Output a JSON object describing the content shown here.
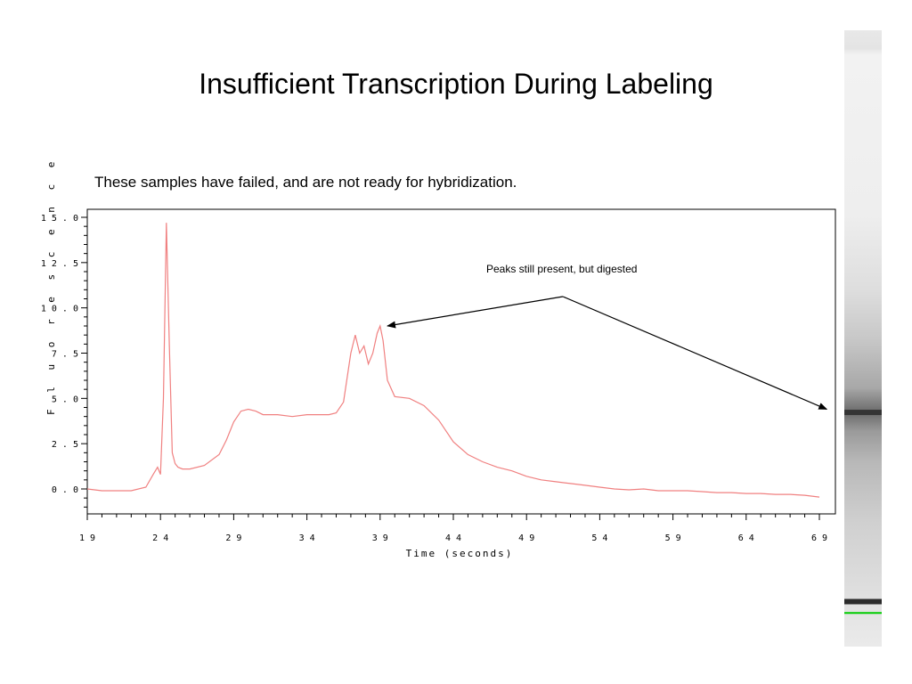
{
  "slide": {
    "title": "Insufficient Transcription During Labeling",
    "subtitle": "These samples have failed, and are not ready for hybridization."
  },
  "annotation": "Peaks still present, but digested",
  "colors": {
    "trace": "#f08080",
    "axis": "#000000",
    "gel_band": "#222222",
    "gel_marker": "#00cc00"
  },
  "chart_data": {
    "type": "line",
    "xlabel": "Time (seconds)",
    "ylabel": "Fluorescence",
    "xlim": [
      19,
      70
    ],
    "ylim": [
      -1.3,
      15.5
    ],
    "x_ticks": [
      19,
      24,
      29,
      34,
      39,
      44,
      49,
      54,
      59,
      64,
      69
    ],
    "y_ticks": [
      0.0,
      2.5,
      5.0,
      7.5,
      10.0,
      12.5,
      15.0
    ],
    "x_tick_labels": [
      "1 9",
      "2 4",
      "2 9",
      "3 4",
      "3 9",
      "4 4",
      "4 9",
      "5 4",
      "5 9",
      "6 4",
      "6 9"
    ],
    "y_tick_labels": [
      "0 . 0",
      "2 . 5",
      "5 . 0",
      "7 . 5",
      "1 0 . 0",
      "1 2 . 5",
      "1 5 . 0"
    ],
    "series": [
      {
        "x": [
          19,
          20,
          21,
          22,
          23,
          23.5,
          23.8,
          24.0,
          24.2,
          24.4,
          24.6,
          24.8,
          25.0,
          25.2,
          25.5,
          26,
          27,
          28,
          28.5,
          29,
          29.5,
          30,
          30.5,
          31,
          32,
          33,
          34,
          35,
          35.5,
          36,
          36.5,
          37,
          37.3,
          37.6,
          37.9,
          38.2,
          38.5,
          38.8,
          39.0,
          39.2,
          39.5,
          40,
          41,
          42,
          43,
          44,
          45,
          46,
          47,
          48,
          49,
          50,
          51,
          52,
          53,
          54,
          55,
          56,
          57,
          58,
          59,
          60,
          61,
          62,
          63,
          64,
          65,
          66,
          67,
          68,
          69
        ],
        "y": [
          0.0,
          -0.1,
          -0.1,
          -0.1,
          0.1,
          0.8,
          1.2,
          0.8,
          5.0,
          14.7,
          8.0,
          2.0,
          1.4,
          1.2,
          1.1,
          1.1,
          1.3,
          1.9,
          2.7,
          3.7,
          4.3,
          4.4,
          4.3,
          4.1,
          4.1,
          4.0,
          4.1,
          4.1,
          4.1,
          4.2,
          4.8,
          7.5,
          8.5,
          7.5,
          7.9,
          6.9,
          7.5,
          8.6,
          9.0,
          8.2,
          6.0,
          5.1,
          5.0,
          4.6,
          3.8,
          2.6,
          1.9,
          1.5,
          1.2,
          1.0,
          0.7,
          0.5,
          0.4,
          0.3,
          0.2,
          0.1,
          0.0,
          -0.05,
          0.0,
          -0.1,
          -0.1,
          -0.1,
          -0.15,
          -0.2,
          -0.2,
          -0.25,
          -0.25,
          -0.3,
          -0.3,
          -0.35,
          -0.45
        ]
      }
    ],
    "annotation_target_x": [
      39.5,
      69.5
    ],
    "annotation_target_y": [
      9.0,
      4.4
    ]
  },
  "gel": {
    "bands": [
      {
        "position": 0.62,
        "strength": 0.75
      },
      {
        "position": 0.927,
        "strength": 0.95
      }
    ],
    "marker_position": 0.944
  }
}
